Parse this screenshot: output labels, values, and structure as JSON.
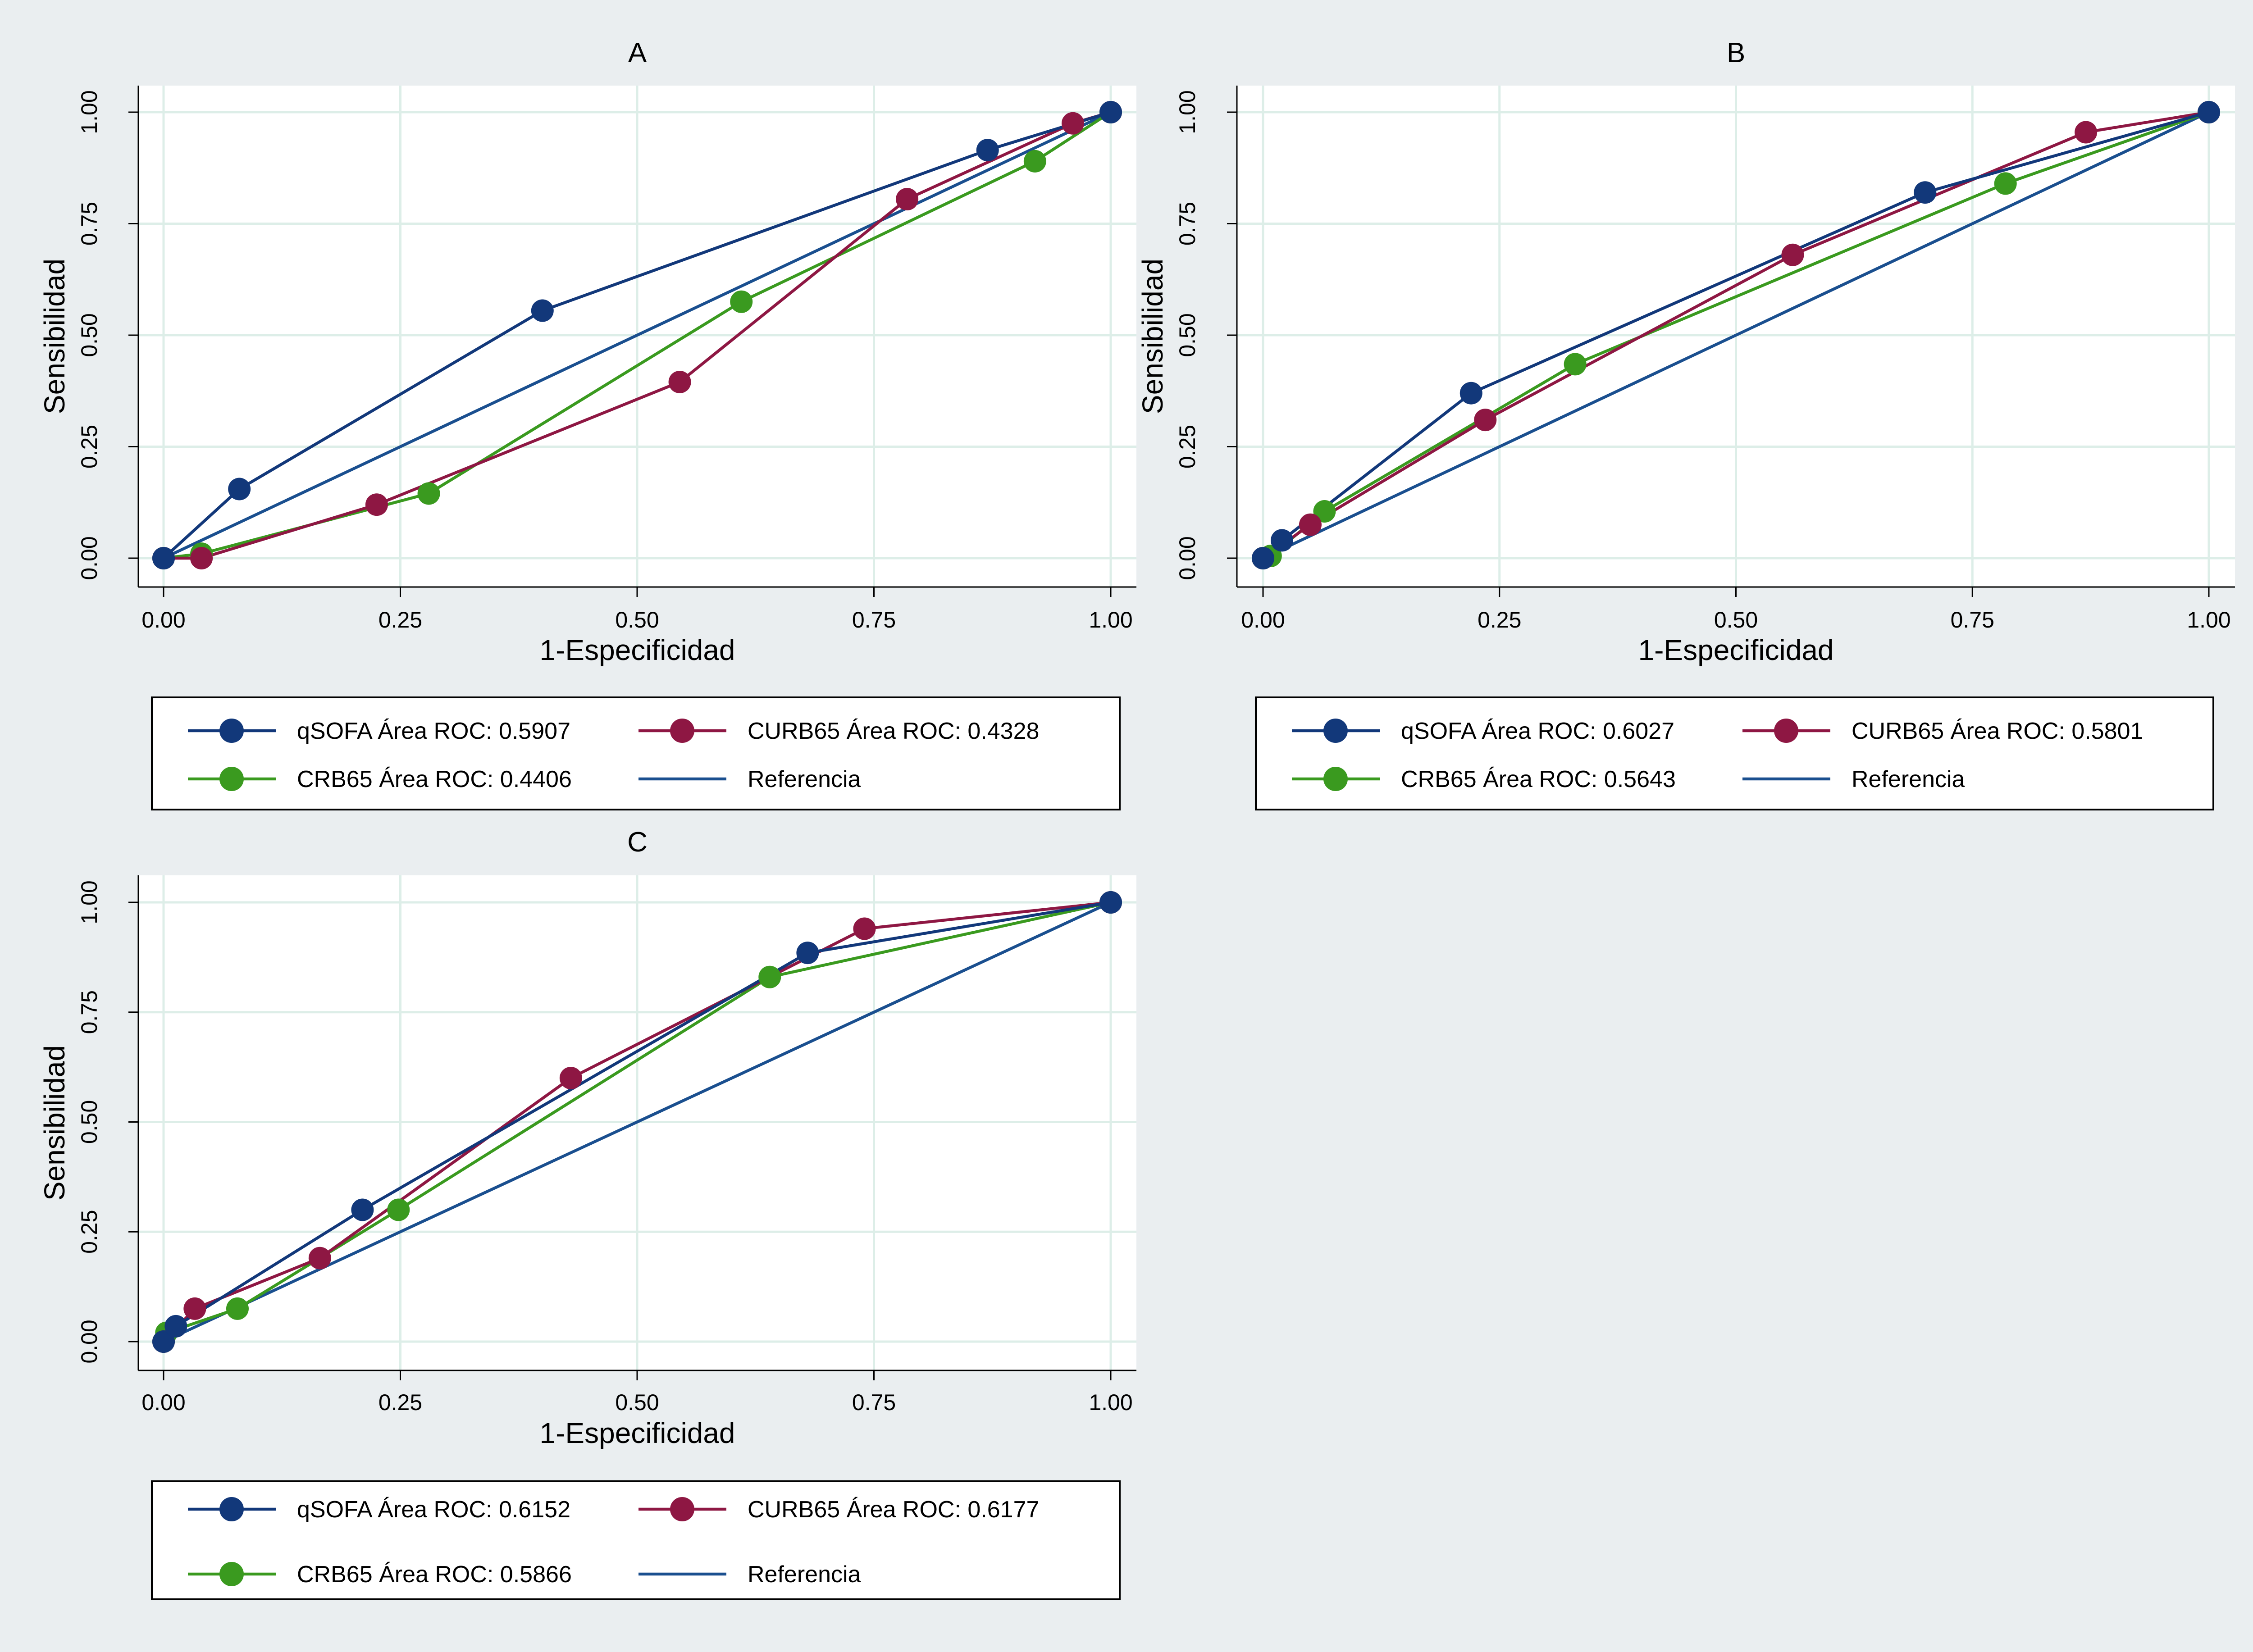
{
  "colors": {
    "page_background": "#EAEEF0",
    "plot_background": "#FFFFFF",
    "grid": "#DDEEE8",
    "qsofa": "#12387A",
    "curb65": "#8E1743",
    "crb65": "#3A9A1F",
    "reference": "#1A4F8F"
  },
  "chart_data": [
    {
      "type": "line",
      "title": "A",
      "xlabel": "1-Especificidad",
      "ylabel": "Sensibilidad",
      "xlim": [
        0,
        1
      ],
      "ylim": [
        0,
        1
      ],
      "xticks": [
        "0.00",
        "0.25",
        "0.50",
        "0.75",
        "1.00"
      ],
      "yticks": [
        "0.00",
        "0.25",
        "0.50",
        "0.75",
        "1.00"
      ],
      "grid": true,
      "legend_position": "bottom",
      "series": [
        {
          "name": "qSOFA Área ROC: 0.5907",
          "key": "qsofa",
          "markers": true,
          "x": [
            0,
            0.08,
            0.4,
            0.87,
            1.0
          ],
          "y": [
            0,
            0.155,
            0.555,
            0.915,
            1.0
          ]
        },
        {
          "name": "CURB65 Área ROC: 0.4328",
          "key": "curb65",
          "markers": true,
          "x": [
            0,
            0.04,
            0.225,
            0.545,
            0.785,
            0.96,
            1.0
          ],
          "y": [
            0,
            0,
            0.12,
            0.395,
            0.805,
            0.975,
            1.0
          ]
        },
        {
          "name": "CRB65 Área ROC: 0.4406",
          "key": "crb65",
          "markers": true,
          "x": [
            0,
            0.04,
            0.28,
            0.61,
            0.92,
            1.0
          ],
          "y": [
            0,
            0.01,
            0.145,
            0.575,
            0.89,
            1.0
          ]
        },
        {
          "name": "Referencia",
          "key": "reference",
          "markers": false,
          "x": [
            0,
            1
          ],
          "y": [
            0,
            1
          ]
        }
      ]
    },
    {
      "type": "line",
      "title": "B",
      "xlabel": "1-Especificidad",
      "ylabel": "Sensibilidad",
      "xlim": [
        0,
        1
      ],
      "ylim": [
        0,
        1
      ],
      "xticks": [
        "0.00",
        "0.25",
        "0.50",
        "0.75",
        "1.00"
      ],
      "yticks": [
        "0.00",
        "0.25",
        "0.50",
        "0.75",
        "1.00"
      ],
      "grid": true,
      "legend_position": "bottom",
      "series": [
        {
          "name": "qSOFA Área ROC: 0.6027",
          "key": "qsofa",
          "markers": true,
          "x": [
            0,
            0.02,
            0.22,
            0.7,
            1.0
          ],
          "y": [
            0,
            0.04,
            0.37,
            0.82,
            1.0
          ]
        },
        {
          "name": "CURB65 Área ROC: 0.5801",
          "key": "curb65",
          "markers": true,
          "x": [
            0,
            0.05,
            0.235,
            0.56,
            0.87,
            1.0
          ],
          "y": [
            0,
            0.075,
            0.31,
            0.68,
            0.955,
            1.0
          ]
        },
        {
          "name": "CRB65 Área ROC: 0.5643",
          "key": "crb65",
          "markers": true,
          "x": [
            0,
            0.008,
            0.065,
            0.33,
            0.785,
            1.0
          ],
          "y": [
            0,
            0.005,
            0.105,
            0.435,
            0.84,
            1.0
          ]
        },
        {
          "name": "Referencia",
          "key": "reference",
          "markers": false,
          "x": [
            0,
            1
          ],
          "y": [
            0,
            1
          ]
        }
      ]
    },
    {
      "type": "line",
      "title": "C",
      "xlabel": "1-Especificidad",
      "ylabel": "Sensibilidad",
      "xlim": [
        0,
        1
      ],
      "ylim": [
        0,
        1
      ],
      "xticks": [
        "0.00",
        "0.25",
        "0.50",
        "0.75",
        "1.00"
      ],
      "yticks": [
        "0.00",
        "0.25",
        "0.50",
        "0.75",
        "1.00"
      ],
      "grid": true,
      "legend_position": "bottom",
      "series": [
        {
          "name": "qSOFA Área ROC: 0.6152",
          "key": "qsofa",
          "markers": true,
          "x": [
            0,
            0.013,
            0.21,
            0.68,
            1.0
          ],
          "y": [
            0,
            0.035,
            0.3,
            0.885,
            1.0
          ]
        },
        {
          "name": "CURB65 Área ROC: 0.6177",
          "key": "curb65",
          "markers": true,
          "x": [
            0,
            0.033,
            0.165,
            0.43,
            0.74,
            1.0
          ],
          "y": [
            0,
            0.075,
            0.19,
            0.6,
            0.94,
            1.0
          ]
        },
        {
          "name": "CRB65 Área ROC: 0.5866",
          "key": "crb65",
          "markers": true,
          "x": [
            0,
            0.003,
            0.078,
            0.248,
            0.64,
            1.0
          ],
          "y": [
            0,
            0.02,
            0.075,
            0.3,
            0.83,
            1.0
          ]
        },
        {
          "name": "Referencia",
          "key": "reference",
          "markers": false,
          "x": [
            0,
            1
          ],
          "y": [
            0,
            1
          ]
        }
      ]
    }
  ]
}
